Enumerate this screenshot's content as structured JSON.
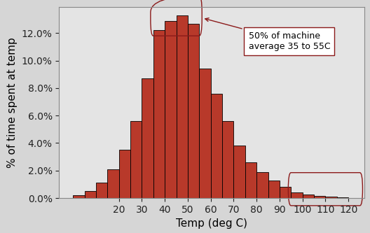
{
  "chart_data": {
    "type": "histogram",
    "bins": [
      0,
      5,
      10,
      15,
      20,
      25,
      30,
      35,
      40,
      45,
      50,
      55,
      60,
      65,
      70,
      75,
      80,
      85,
      90,
      95,
      100,
      105,
      110,
      115,
      120,
      125
    ],
    "values": [
      0.2,
      0.5,
      1.1,
      2.1,
      3.5,
      5.6,
      8.7,
      12.2,
      12.9,
      13.3,
      12.7,
      9.4,
      7.6,
      5.6,
      3.8,
      2.6,
      1.9,
      1.3,
      0.8,
      0.4,
      0.25,
      0.15,
      0.1,
      0.05,
      0.02
    ],
    "color": "#b8392a",
    "x_label": "Temp (deg C)",
    "y_label": "% of time spent at temp",
    "xlim": [
      -6,
      127
    ],
    "ylim": [
      0,
      13.9
    ],
    "xticks": [
      20,
      30,
      40,
      50,
      60,
      70,
      80,
      90,
      100,
      110,
      120
    ],
    "yticks": [
      {
        "value": 0,
        "label": "0.0%"
      },
      {
        "value": 2,
        "label": "2.0%"
      },
      {
        "value": 4,
        "label": "4.0%"
      },
      {
        "value": 6,
        "label": "6.0%"
      },
      {
        "value": 8,
        "label": "8.0%"
      },
      {
        "value": 10,
        "label": "10.0%"
      },
      {
        "value": 12,
        "label": "12.0%"
      }
    ],
    "grid": false,
    "annotations": [
      {
        "text": "50% of machine\naverage 35 to 55C"
      }
    ]
  }
}
